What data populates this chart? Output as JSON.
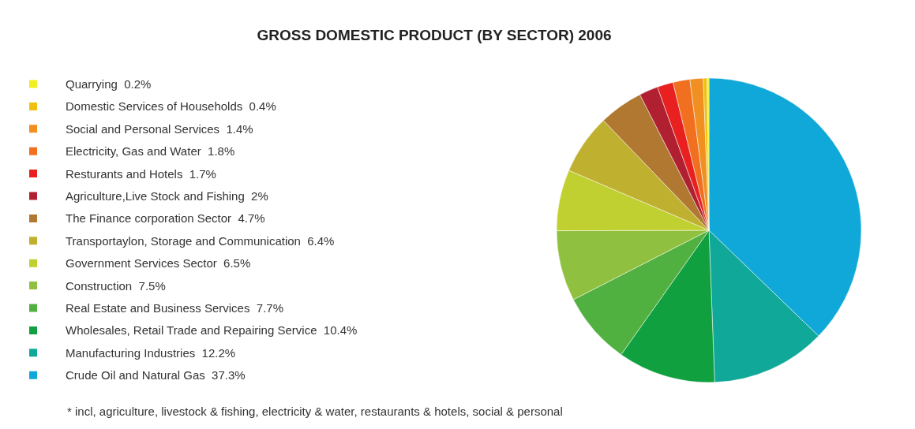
{
  "chart_data": {
    "type": "pie",
    "title": "GROSS DOMESTIC PRODUCT (BY SECTOR) 2006",
    "categories": [
      "Quarrying",
      "Domestic Services of Households",
      "Social and Personal Services",
      "Electricity, Gas and Water",
      "Resturants and Hotels",
      "Agriculture,Live Stock and Fishing",
      "The Finance corporation Sector",
      "Transportaylon, Storage and Communication",
      "Government Services Sector",
      "Construction",
      "Real Estate and Business Services",
      "Wholesales, Retail Trade and Repairing Service",
      "Manufacturing Industries",
      "Crude Oil and Natural Gas"
    ],
    "values": [
      0.2,
      0.4,
      1.4,
      1.8,
      1.7,
      2,
      4.7,
      6.4,
      6.5,
      7.5,
      7.7,
      10.4,
      12.2,
      37.3
    ],
    "value_labels": [
      "0.2%",
      "0.4%",
      "1.4%",
      "1.8%",
      "1.7%",
      "2%",
      "4.7%",
      "6.4%",
      "6.5%",
      "7.5%",
      "7.7%",
      "10.4%",
      "12.2%",
      "37.3%"
    ],
    "colors": [
      "#f0f020",
      "#f0c010",
      "#f09020",
      "#f07020",
      "#e82020",
      "#b02030",
      "#b07830",
      "#c0b030",
      "#c0d030",
      "#90c040",
      "#50b040",
      "#10a040",
      "#10a898",
      "#10a8d8"
    ],
    "legend": "left",
    "annotations": [
      "* incl, agriculture, livestock & fishing, electricity & water, restaurants & hotels, social & personal"
    ]
  }
}
